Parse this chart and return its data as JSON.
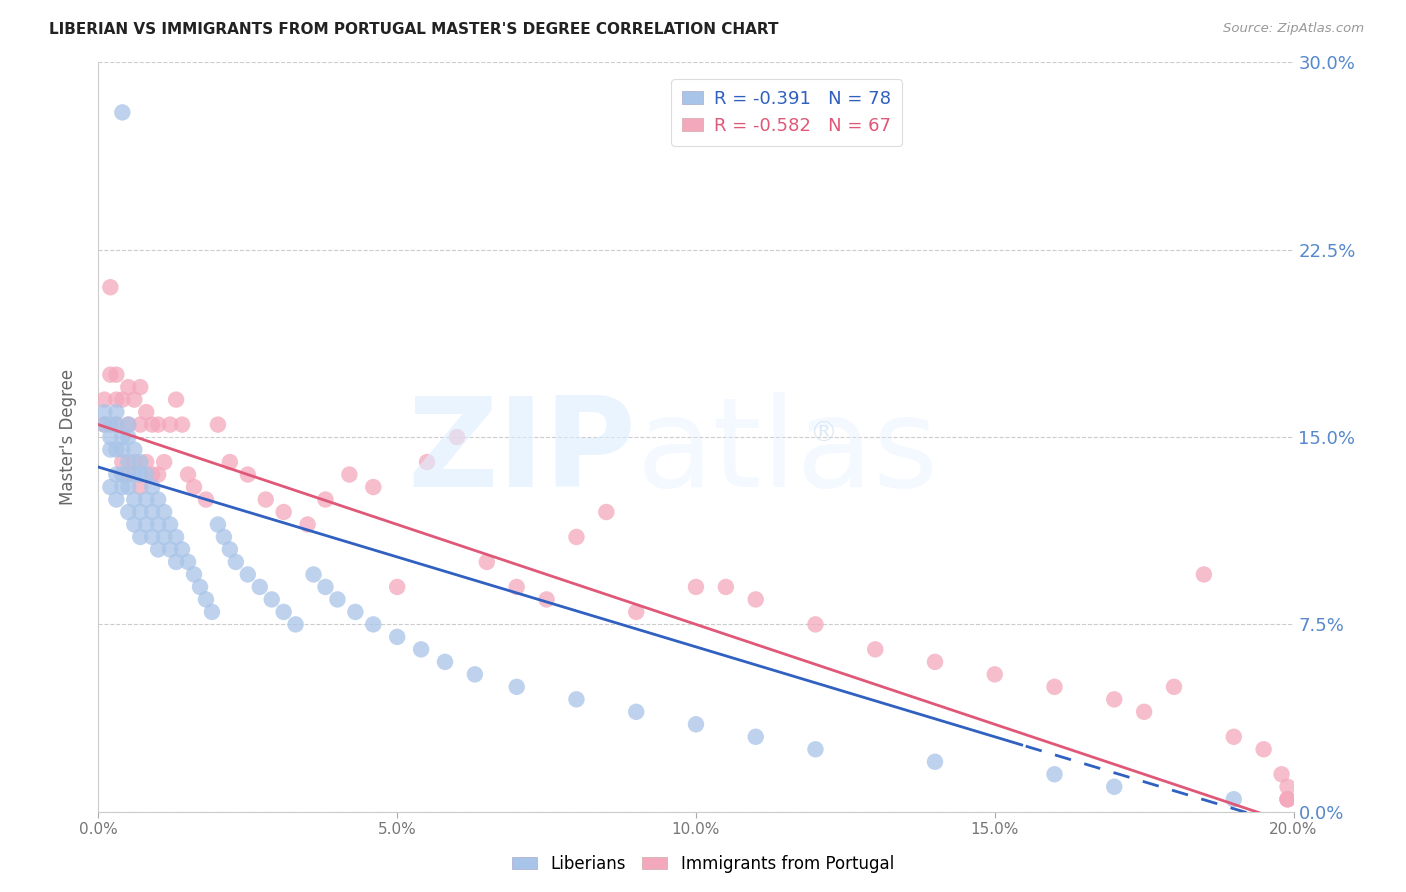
{
  "title": "LIBERIAN VS IMMIGRANTS FROM PORTUGAL MASTER'S DEGREE CORRELATION CHART",
  "source": "Source: ZipAtlas.com",
  "ylabel": "Master's Degree",
  "xlim": [
    0.0,
    0.2
  ],
  "ylim": [
    0.0,
    0.3
  ],
  "xticks": [
    0.0,
    0.05,
    0.1,
    0.15,
    0.2
  ],
  "yticks": [
    0.0,
    0.075,
    0.15,
    0.225,
    0.3
  ],
  "ytick_labels_right": [
    "0.0%",
    "7.5%",
    "15.0%",
    "22.5%",
    "30.0%"
  ],
  "xtick_labels": [
    "0.0%",
    "5.0%",
    "10.0%",
    "15.0%",
    "20.0%"
  ],
  "liberian_R": -0.391,
  "liberian_N": 78,
  "portugal_R": -0.582,
  "portugal_N": 67,
  "liberian_color": "#a8c4e8",
  "portugal_color": "#f4a8bc",
  "liberian_line_color": "#3060c0",
  "portugal_line_color": "#e05878",
  "legend_liberian": "Liberians",
  "legend_portugal": "Immigrants from Portugal",
  "lib_intercept": 0.138,
  "lib_slope": -0.72,
  "port_intercept": 0.155,
  "port_slope": -0.8,
  "liberian_x": [
    0.004,
    0.001,
    0.001,
    0.002,
    0.002,
    0.002,
    0.002,
    0.003,
    0.003,
    0.003,
    0.003,
    0.003,
    0.004,
    0.004,
    0.004,
    0.004,
    0.005,
    0.005,
    0.005,
    0.005,
    0.005,
    0.006,
    0.006,
    0.006,
    0.006,
    0.007,
    0.007,
    0.007,
    0.007,
    0.008,
    0.008,
    0.008,
    0.009,
    0.009,
    0.009,
    0.01,
    0.01,
    0.01,
    0.011,
    0.011,
    0.012,
    0.012,
    0.013,
    0.013,
    0.014,
    0.015,
    0.016,
    0.017,
    0.018,
    0.019,
    0.02,
    0.021,
    0.022,
    0.023,
    0.025,
    0.027,
    0.029,
    0.031,
    0.033,
    0.036,
    0.038,
    0.04,
    0.043,
    0.046,
    0.05,
    0.054,
    0.058,
    0.063,
    0.07,
    0.08,
    0.09,
    0.1,
    0.11,
    0.12,
    0.14,
    0.16,
    0.17,
    0.19
  ],
  "liberian_y": [
    0.28,
    0.16,
    0.155,
    0.155,
    0.15,
    0.145,
    0.13,
    0.16,
    0.155,
    0.145,
    0.135,
    0.125,
    0.15,
    0.145,
    0.135,
    0.13,
    0.155,
    0.15,
    0.14,
    0.13,
    0.12,
    0.145,
    0.135,
    0.125,
    0.115,
    0.14,
    0.135,
    0.12,
    0.11,
    0.135,
    0.125,
    0.115,
    0.13,
    0.12,
    0.11,
    0.125,
    0.115,
    0.105,
    0.12,
    0.11,
    0.115,
    0.105,
    0.11,
    0.1,
    0.105,
    0.1,
    0.095,
    0.09,
    0.085,
    0.08,
    0.115,
    0.11,
    0.105,
    0.1,
    0.095,
    0.09,
    0.085,
    0.08,
    0.075,
    0.095,
    0.09,
    0.085,
    0.08,
    0.075,
    0.07,
    0.065,
    0.06,
    0.055,
    0.05,
    0.045,
    0.04,
    0.035,
    0.03,
    0.025,
    0.02,
    0.015,
    0.01,
    0.005
  ],
  "portugal_x": [
    0.001,
    0.001,
    0.002,
    0.002,
    0.003,
    0.003,
    0.003,
    0.004,
    0.004,
    0.005,
    0.005,
    0.005,
    0.006,
    0.006,
    0.007,
    0.007,
    0.007,
    0.008,
    0.008,
    0.009,
    0.009,
    0.01,
    0.01,
    0.011,
    0.012,
    0.013,
    0.014,
    0.015,
    0.016,
    0.018,
    0.02,
    0.022,
    0.025,
    0.028,
    0.031,
    0.035,
    0.038,
    0.042,
    0.046,
    0.05,
    0.055,
    0.06,
    0.065,
    0.07,
    0.075,
    0.08,
    0.085,
    0.09,
    0.1,
    0.105,
    0.11,
    0.12,
    0.13,
    0.14,
    0.15,
    0.16,
    0.17,
    0.175,
    0.18,
    0.185,
    0.19,
    0.195,
    0.198,
    0.199,
    0.199,
    0.199,
    0.199
  ],
  "portugal_y": [
    0.165,
    0.155,
    0.21,
    0.175,
    0.165,
    0.155,
    0.175,
    0.165,
    0.14,
    0.17,
    0.155,
    0.135,
    0.165,
    0.14,
    0.17,
    0.155,
    0.13,
    0.16,
    0.14,
    0.155,
    0.135,
    0.155,
    0.135,
    0.14,
    0.155,
    0.165,
    0.155,
    0.135,
    0.13,
    0.125,
    0.155,
    0.14,
    0.135,
    0.125,
    0.12,
    0.115,
    0.125,
    0.135,
    0.13,
    0.09,
    0.14,
    0.15,
    0.1,
    0.09,
    0.085,
    0.11,
    0.12,
    0.08,
    0.09,
    0.09,
    0.085,
    0.075,
    0.065,
    0.06,
    0.055,
    0.05,
    0.045,
    0.04,
    0.05,
    0.095,
    0.03,
    0.025,
    0.015,
    0.01,
    0.005,
    0.005,
    0.005
  ]
}
